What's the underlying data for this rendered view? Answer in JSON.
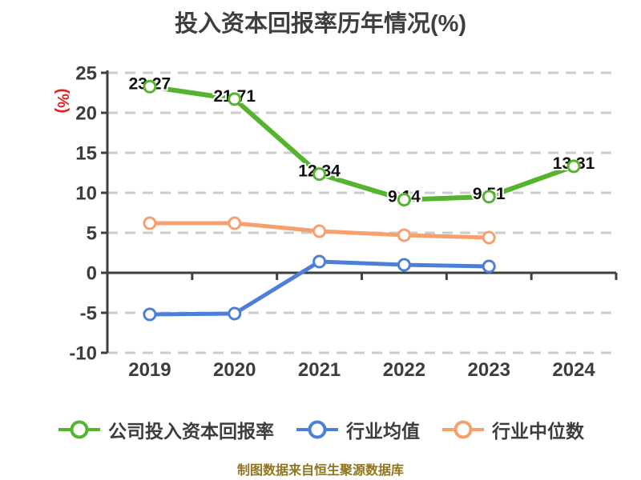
{
  "title": "投入资本回报率历年情况(%)",
  "footer": "制图数据来自恒生聚源数据库",
  "colors": {
    "background": "#ffffff",
    "title_text": "#3f3f3f",
    "axis": "#3f3f3f",
    "tick_label": "#3d3d3d",
    "gridline": "#cccccc",
    "data_label": "#111111",
    "ylabel_text": "#e02222",
    "footer_text": "#8f751d",
    "point_fill": "#ffffff"
  },
  "chart_data": {
    "type": "line",
    "title": "投入资本回报率历年情况(%)",
    "xlabel": "",
    "ylabel": "(%)",
    "categories": [
      "2019",
      "2020",
      "2021",
      "2022",
      "2023",
      "2024"
    ],
    "ylim": [
      -10,
      25
    ],
    "yticks": [
      25,
      20,
      15,
      10,
      5,
      0,
      -5,
      -10
    ],
    "grid": "horizontal-dashed",
    "legend_position": "bottom",
    "series": [
      {
        "name": "公司投入资本回报率",
        "color": "#55b42e",
        "values": [
          23.27,
          21.71,
          12.34,
          9.14,
          9.51,
          13.31
        ],
        "point_labels": [
          "23.27",
          "21.71",
          "12.34",
          "9.14",
          "9.51",
          "13.31"
        ]
      },
      {
        "name": "行业均值",
        "color": "#4d7ed9",
        "values": [
          -5.2,
          -5.1,
          1.4,
          1.0,
          0.8,
          null
        ]
      },
      {
        "name": "行业中位数",
        "color": "#f7a06e",
        "values": [
          6.2,
          6.2,
          5.2,
          4.7,
          4.4,
          null
        ]
      }
    ]
  }
}
